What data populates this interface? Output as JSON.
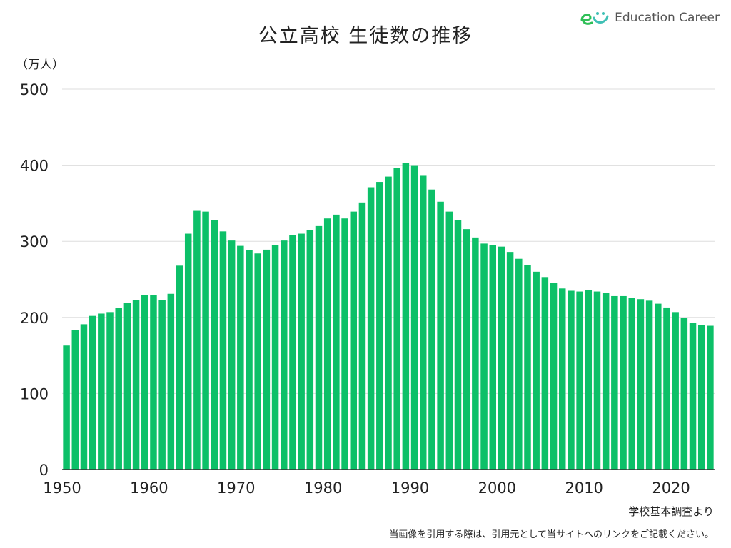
{
  "title": "公立高校 生徒数の推移",
  "logo": {
    "text": "Education Career"
  },
  "unit_label": "（万人）",
  "source": "学校基本調査より",
  "note": "当画像を引用する際は、引用元として当サイトへのリンクをご記載ください。",
  "colors": {
    "bar": "#0cc068",
    "grid": "#dddddd",
    "axis": "#333333",
    "logo_green": "#2fbf57",
    "logo_teal": "#3fc0b5"
  },
  "chart_data": {
    "type": "bar",
    "title": "公立高校 生徒数の推移",
    "ylabel": "（万人）",
    "xlabel": "",
    "ylim": [
      0,
      500
    ],
    "yticks": [
      0,
      100,
      200,
      300,
      400,
      500
    ],
    "xticks": [
      1950,
      1960,
      1970,
      1980,
      1990,
      2000,
      2010,
      2020
    ],
    "grid": true,
    "x": [
      1950,
      1951,
      1952,
      1953,
      1954,
      1955,
      1956,
      1957,
      1958,
      1959,
      1960,
      1961,
      1962,
      1963,
      1964,
      1965,
      1966,
      1967,
      1968,
      1969,
      1970,
      1971,
      1972,
      1973,
      1974,
      1975,
      1976,
      1977,
      1978,
      1979,
      1980,
      1981,
      1982,
      1983,
      1984,
      1985,
      1986,
      1987,
      1988,
      1989,
      1990,
      1991,
      1992,
      1993,
      1994,
      1995,
      1996,
      1997,
      1998,
      1999,
      2000,
      2001,
      2002,
      2003,
      2004,
      2005,
      2006,
      2007,
      2008,
      2009,
      2010,
      2011,
      2012,
      2013,
      2014,
      2015,
      2016,
      2017,
      2018,
      2019,
      2020,
      2021,
      2022,
      2023,
      2024
    ],
    "values": [
      163,
      183,
      191,
      202,
      205,
      207,
      212,
      219,
      223,
      229,
      229,
      223,
      231,
      268,
      310,
      340,
      339,
      328,
      313,
      301,
      294,
      288,
      284,
      289,
      295,
      301,
      308,
      310,
      315,
      320,
      330,
      335,
      330,
      339,
      351,
      371,
      378,
      385,
      396,
      403,
      400,
      387,
      368,
      352,
      339,
      328,
      316,
      305,
      297,
      295,
      293,
      286,
      277,
      269,
      260,
      253,
      245,
      238,
      235,
      234,
      236,
      234,
      232,
      228,
      228,
      226,
      224,
      222,
      218,
      213,
      207,
      199,
      193,
      190,
      189
    ]
  }
}
